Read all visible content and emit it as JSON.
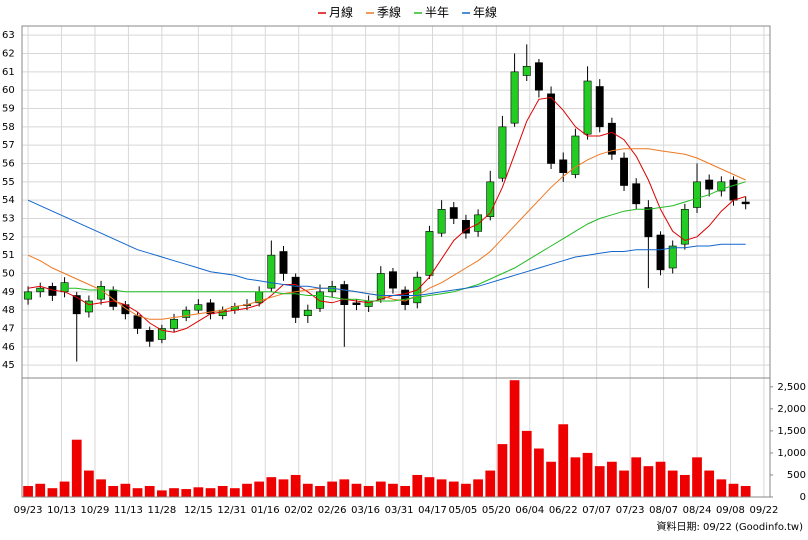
{
  "chart_data": [
    {
      "type": "candlestick",
      "x": [
        0,
        4,
        8,
        12,
        16,
        20,
        24,
        28,
        32,
        36,
        40,
        44,
        48,
        52,
        56,
        60,
        64,
        68,
        72,
        76,
        80,
        84,
        88,
        92,
        96,
        100,
        104,
        108,
        112,
        116,
        120,
        124,
        128,
        132,
        136,
        140,
        144,
        148,
        152,
        156,
        160,
        164,
        168,
        172,
        176,
        180,
        184,
        188,
        192,
        196,
        200,
        204,
        208,
        212,
        216,
        220,
        224,
        228,
        232,
        236
      ],
      "open": [
        48.6,
        49,
        49.3,
        49,
        48.8,
        47.9,
        48.6,
        49.1,
        48.3,
        47.7,
        46.9,
        46.4,
        47,
        47.6,
        48,
        48.4,
        47.7,
        48,
        48.3,
        48.4,
        49.2,
        51.2,
        49.8,
        47.7,
        48.1,
        49,
        49.4,
        48.4,
        48.2,
        48.6,
        50.1,
        49.1,
        48.4,
        49.9,
        52.2,
        53.6,
        52.9,
        52.3,
        53.1,
        55.2,
        58.2,
        60.8,
        61.5,
        59.8,
        56.2,
        55.4,
        57.6,
        60.2,
        58.2,
        56.3,
        54.9,
        53.6,
        52.1,
        50.3,
        51.6,
        53.6,
        55.1,
        54.5,
        55.1,
        53.9
      ],
      "high": [
        49.3,
        49.5,
        49.5,
        49.8,
        49,
        48.8,
        49.6,
        49.3,
        48.5,
        47.9,
        47.1,
        47.2,
        47.8,
        48.2,
        48.6,
        48.6,
        48.2,
        48.4,
        48.6,
        49.3,
        51.8,
        51.5,
        50,
        48.3,
        49.4,
        49.6,
        49.6,
        48.6,
        48.8,
        50.4,
        50.3,
        49.3,
        50.1,
        52.6,
        54,
        53.9,
        53.2,
        53.5,
        55.6,
        58.6,
        62,
        62.5,
        61.7,
        60.2,
        56.6,
        57.9,
        61.3,
        60.6,
        58.5,
        56.6,
        55.2,
        54,
        52.3,
        51.8,
        53.8,
        56,
        55.4,
        55.3,
        55.3,
        54.2
      ],
      "low": [
        48.3,
        48.7,
        48.5,
        48.7,
        45.2,
        47.6,
        48.3,
        48,
        47.5,
        46.7,
        46,
        46.2,
        46.8,
        47.4,
        47.8,
        47.5,
        47.5,
        47.8,
        48,
        48.2,
        49,
        49.6,
        47.3,
        47.3,
        47.9,
        48.7,
        46,
        48,
        47.9,
        48.4,
        48.9,
        48,
        48.1,
        49.7,
        52,
        52.7,
        51.9,
        52,
        52.9,
        55,
        58,
        60.5,
        59.6,
        55.7,
        55,
        55.2,
        57.3,
        57.7,
        56.2,
        54.5,
        53.5,
        49.2,
        49.9,
        50,
        51.3,
        53.3,
        54.2,
        54.2,
        53.7,
        53.5
      ],
      "close": [
        49,
        49.2,
        48.8,
        49.5,
        47.8,
        48.5,
        49.3,
        48.2,
        47.8,
        47,
        46.3,
        47,
        47.5,
        48,
        48.3,
        47.8,
        48,
        48.2,
        48.3,
        49,
        51,
        50,
        47.6,
        48,
        49,
        49.3,
        48.3,
        48.3,
        48.5,
        50,
        49.2,
        48.3,
        49.8,
        52.3,
        53.5,
        53,
        52.2,
        53.2,
        55,
        58,
        61,
        61.3,
        60,
        56,
        55.5,
        57.5,
        60.5,
        58,
        56.5,
        54.8,
        53.8,
        52,
        50.2,
        51.5,
        53.5,
        55,
        54.6,
        55,
        54,
        53.8
      ],
      "candle_color": "#22cc22",
      "series": [
        {
          "name": "月線",
          "color": "#dd0000",
          "values": [
            49.2,
            49.3,
            49.1,
            49.0,
            48.7,
            48.3,
            48.4,
            48.5,
            48.3,
            47.9,
            47.3,
            46.9,
            46.8,
            47.0,
            47.4,
            47.8,
            47.9,
            48.0,
            48.1,
            48.3,
            48.8,
            49.4,
            49.4,
            49.0,
            48.5,
            48.4,
            48.6,
            48.5,
            48.4,
            48.6,
            48.8,
            48.9,
            49.1,
            49.8,
            50.8,
            51.8,
            52.4,
            52.7,
            53.3,
            54.7,
            56.5,
            58.3,
            59.5,
            59.6,
            58.9,
            58.0,
            57.5,
            57.5,
            57.7,
            57.3,
            56.4,
            55.1,
            53.5,
            52.3,
            51.8,
            52.0,
            52.6,
            53.4,
            54.0,
            54.2
          ]
        },
        {
          "name": "季線",
          "color": "#ee7722",
          "values": [
            51,
            50.7,
            50.3,
            50,
            49.7,
            49.4,
            49.1,
            48.6,
            48.1,
            47.7,
            47.5,
            47.5,
            47.6,
            47.7,
            47.8,
            47.9,
            48.0,
            48.2,
            48.3,
            48.5,
            48.7,
            48.9,
            49.0,
            49.1,
            49.2,
            49.2,
            49.1,
            49.0,
            48.9,
            48.8,
            48.6,
            48.5,
            48.8,
            49.2,
            49.5,
            49.9,
            50.3,
            50.7,
            51.2,
            51.9,
            52.6,
            53.3,
            54.0,
            54.7,
            55.3,
            55.8,
            56.2,
            56.5,
            56.7,
            56.8,
            56.8,
            56.8,
            56.7,
            56.6,
            56.5,
            56.3,
            56.0,
            55.7,
            55.4,
            55.1
          ]
        },
        {
          "name": "半年",
          "color": "#22bb22",
          "values": [
            null,
            null,
            null,
            49.2,
            49.2,
            49.1,
            49.1,
            49.1,
            49.0,
            49.0,
            49.0,
            49.0,
            49.0,
            49.0,
            49.0,
            49.0,
            49.0,
            49.0,
            49.0,
            49.0,
            49.0,
            48.9,
            48.9,
            48.8,
            48.8,
            48.7,
            48.6,
            48.6,
            48.5,
            48.5,
            48.5,
            48.6,
            48.7,
            48.8,
            48.9,
            49.0,
            49.2,
            49.4,
            49.7,
            50.0,
            50.3,
            50.7,
            51.1,
            51.5,
            51.9,
            52.3,
            52.7,
            53.0,
            53.2,
            53.4,
            53.5,
            53.5,
            53.6,
            53.7,
            53.9,
            54.1,
            54.3,
            54.6,
            54.8,
            55.0
          ]
        },
        {
          "name": "年線",
          "color": "#1166cc",
          "values": [
            54,
            53.7,
            53.4,
            53.1,
            52.8,
            52.5,
            52.2,
            51.9,
            51.6,
            51.3,
            51.1,
            50.9,
            50.7,
            50.5,
            50.3,
            50.1,
            50.0,
            49.9,
            49.7,
            49.6,
            49.5,
            49.4,
            49.3,
            49.3,
            49.2,
            49.2,
            49.1,
            49.0,
            48.9,
            48.8,
            48.8,
            48.8,
            48.8,
            48.9,
            49.0,
            49.1,
            49.2,
            49.3,
            49.5,
            49.7,
            49.9,
            50.1,
            50.3,
            50.5,
            50.7,
            50.9,
            51.0,
            51.1,
            51.2,
            51.2,
            51.3,
            51.3,
            51.3,
            51.4,
            51.4,
            51.5,
            51.5,
            51.6,
            51.6,
            51.6
          ]
        }
      ],
      "xlim": [
        -2,
        244
      ],
      "ylim": [
        44.3,
        63.5
      ],
      "yticks": [
        45,
        46,
        47,
        48,
        49,
        50,
        51,
        52,
        53,
        54,
        55,
        56,
        57,
        58,
        59,
        60,
        61,
        62,
        63
      ],
      "grid": true
    },
    {
      "type": "bar",
      "x": [
        0,
        4,
        8,
        12,
        16,
        20,
        24,
        28,
        32,
        36,
        40,
        44,
        48,
        52,
        56,
        60,
        64,
        68,
        72,
        76,
        80,
        84,
        88,
        92,
        96,
        100,
        104,
        108,
        112,
        116,
        120,
        124,
        128,
        132,
        136,
        140,
        144,
        148,
        152,
        156,
        160,
        164,
        168,
        172,
        176,
        180,
        184,
        188,
        192,
        196,
        200,
        204,
        208,
        212,
        216,
        220,
        224,
        228,
        232,
        236
      ],
      "values": [
        250,
        300,
        200,
        350,
        1300,
        600,
        400,
        250,
        300,
        200,
        250,
        150,
        200,
        180,
        220,
        200,
        250,
        200,
        300,
        350,
        450,
        400,
        500,
        300,
        250,
        350,
        400,
        300,
        250,
        350,
        300,
        250,
        500,
        450,
        400,
        350,
        300,
        400,
        600,
        1200,
        2650,
        1500,
        1100,
        800,
        1650,
        900,
        1000,
        700,
        800,
        600,
        900,
        700,
        800,
        600,
        500,
        900,
        600,
        400,
        300,
        250
      ],
      "color": "#ee0000",
      "xlim": [
        -2,
        244
      ],
      "ylim": [
        0,
        2700
      ],
      "yticks": [
        0,
        500,
        {
          "value": 1000,
          "label": "1,000"
        },
        {
          "value": 1500,
          "label": "1,500"
        },
        {
          "value": 2000,
          "label": "2,000"
        },
        {
          "value": 2500,
          "label": "2,500"
        }
      ],
      "xticks": [
        {
          "value": 0,
          "label": "09/23"
        },
        {
          "value": 11,
          "label": "10/13"
        },
        {
          "value": 22,
          "label": "10/29"
        },
        {
          "value": 33,
          "label": "11/13"
        },
        {
          "value": 44,
          "label": "11/28"
        },
        {
          "value": 56,
          "label": "12/15"
        },
        {
          "value": 67,
          "label": "12/31"
        },
        {
          "value": 78,
          "label": "01/16"
        },
        {
          "value": 89,
          "label": "02/02"
        },
        {
          "value": 100,
          "label": "02/26"
        },
        {
          "value": 111,
          "label": "03/16"
        },
        {
          "value": 122,
          "label": "03/31"
        },
        {
          "value": 133,
          "label": "04/17"
        },
        {
          "value": 143,
          "label": "05/05"
        },
        {
          "value": 154,
          "label": "05/20"
        },
        {
          "value": 165,
          "label": "06/04"
        },
        {
          "value": 176,
          "label": "06/22"
        },
        {
          "value": 187,
          "label": "07/07"
        },
        {
          "value": 198,
          "label": "07/23"
        },
        {
          "value": 209,
          "label": "08/07"
        },
        {
          "value": 220,
          "label": "08/24"
        },
        {
          "value": 231,
          "label": "09/08"
        },
        {
          "value": 242,
          "label": "09/22"
        }
      ],
      "annotation": "資料日期: 09/22 (Goodinfo.tw)",
      "grid": true
    }
  ]
}
